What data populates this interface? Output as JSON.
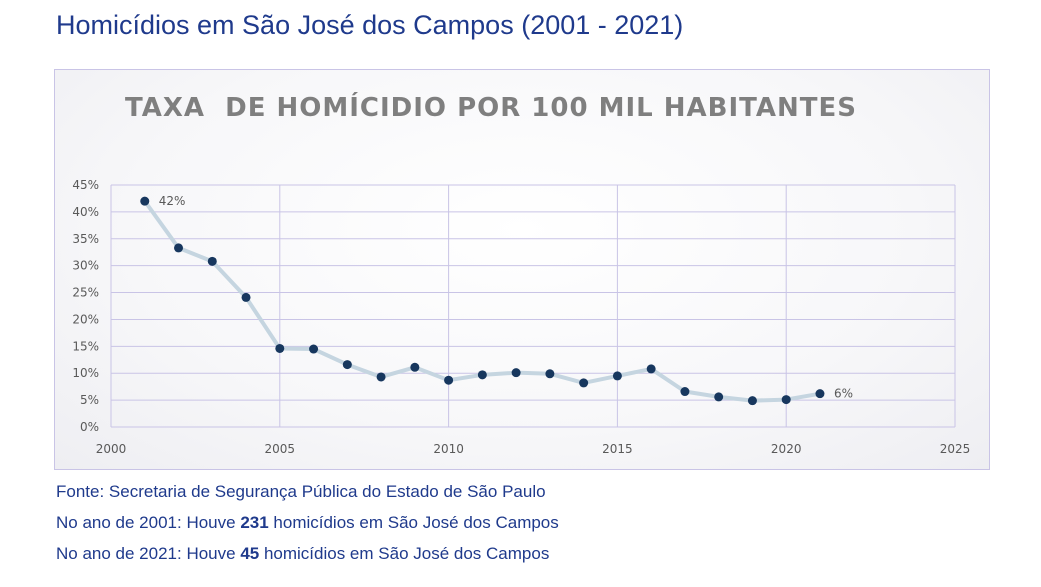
{
  "page": {
    "title": "Homicídios em São José dos Campos (2001 - 2021)"
  },
  "notes": {
    "source": "Fonte: Secretaria de Segurança Pública do Estado de São Paulo",
    "line2_prefix": "No ano de 2001: Houve ",
    "line2_value": "231",
    "line2_suffix": " homicídios em São José dos Campos",
    "line3_prefix": "No ano de 2021: Houve ",
    "line3_value": "45",
    "line3_suffix": " homicídios em São José dos Campos"
  },
  "chart_data": {
    "type": "line",
    "title": "TAXA  DE HOMÍCIDIO POR 100 MIL HABITANTES",
    "xlabel": "",
    "ylabel": "",
    "xlim": [
      2000,
      2025
    ],
    "ylim": [
      0,
      45
    ],
    "x_ticks": [
      2000,
      2005,
      2010,
      2015,
      2020,
      2025
    ],
    "x_tick_labels": [
      "2000",
      "2005",
      "2010",
      "2015",
      "2020",
      "2025"
    ],
    "y_ticks": [
      0,
      5,
      10,
      15,
      20,
      25,
      30,
      35,
      40,
      45
    ],
    "y_tick_labels": [
      "0%",
      "5%",
      "10%",
      "15%",
      "20%",
      "25%",
      "30%",
      "35%",
      "40%",
      "45%"
    ],
    "grid": true,
    "line_color": "#c5d5e0",
    "marker_color": "#17375e",
    "series": [
      {
        "x": [
          2001,
          2002,
          2003,
          2004,
          2005,
          2006,
          2007,
          2008,
          2009,
          2010,
          2011,
          2012,
          2013,
          2014,
          2015,
          2016,
          2017,
          2018,
          2019,
          2020,
          2021
        ],
        "values": [
          42,
          33.3,
          30.8,
          24.1,
          14.6,
          14.5,
          11.6,
          9.3,
          11.1,
          8.7,
          9.7,
          10.1,
          9.9,
          8.2,
          9.5,
          10.8,
          6.6,
          5.6,
          4.9,
          5.1,
          6.2
        ]
      }
    ],
    "annotations": [
      {
        "x": 2001,
        "y": 42,
        "text": "42%"
      },
      {
        "x": 2021,
        "y": 6.2,
        "text": "6%"
      }
    ]
  }
}
